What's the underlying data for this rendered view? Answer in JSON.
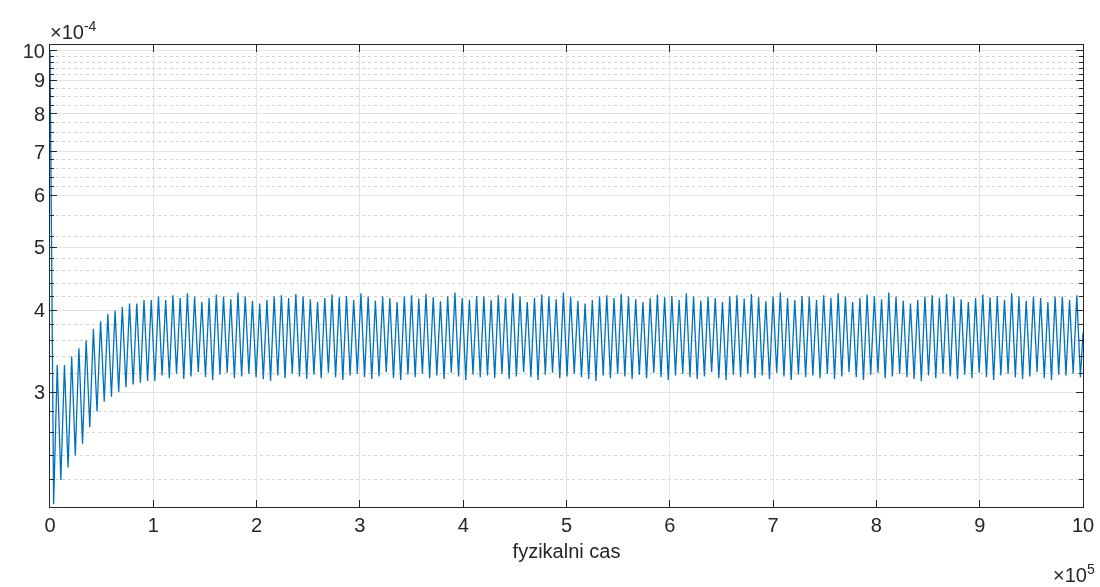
{
  "chart_data": {
    "type": "line",
    "xlabel": "fyzikalni cas",
    "annotations": [
      "×10$^{-4}$",
      "×10$^{5}$"
    ],
    "log": "y",
    "grid": true,
    "marker": "none",
    "line_style": "solid",
    "xlim": [
      0,
      10
    ],
    "ylim": [
      2.0,
      10.2
    ],
    "xticks": [
      0,
      1,
      2,
      3,
      4,
      5,
      6,
      7,
      8,
      9,
      10
    ],
    "yticks": [
      3,
      4,
      5,
      6,
      7,
      8,
      9,
      10,
      {
        "value": 2.2,
        "label": null
      },
      {
        "value": 2.4,
        "label": null
      },
      {
        "value": 2.6,
        "label": null
      },
      {
        "value": 2.8,
        "label": null
      },
      {
        "value": 3.2,
        "label": null
      },
      {
        "value": 3.4,
        "label": null
      },
      {
        "value": 3.6,
        "label": null
      },
      {
        "value": 3.8,
        "label": null
      },
      {
        "value": 4.2,
        "label": null
      },
      {
        "value": 4.4,
        "label": null
      },
      {
        "value": 4.6,
        "label": null
      },
      {
        "value": 4.8,
        "label": null
      },
      {
        "value": 5.2,
        "label": null
      },
      {
        "value": 5.6,
        "label": null
      },
      {
        "value": 6.2,
        "label": null
      },
      {
        "value": 6.4,
        "label": null
      },
      {
        "value": 6.6,
        "label": null
      },
      {
        "value": 6.8,
        "label": null
      },
      {
        "value": 7.25,
        "label": null
      },
      {
        "value": 7.5,
        "label": null
      },
      {
        "value": 7.75,
        "label": null
      },
      {
        "value": 8.25,
        "label": null
      },
      {
        "value": 8.5,
        "label": null
      },
      {
        "value": 8.75,
        "label": null
      },
      {
        "value": 9.2,
        "label": null
      },
      {
        "value": 9.4,
        "label": null
      },
      {
        "value": 9.6,
        "label": null
      },
      {
        "value": 9.8,
        "label": null
      }
    ],
    "x": [
      0,
      0.035,
      0.07,
      0.105,
      0.14,
      0.175,
      0.21,
      0.245,
      0.28,
      0.315,
      0.35,
      0.385,
      0.42,
      0.455,
      0.49,
      0.525,
      0.56,
      0.595,
      0.63,
      0.665,
      0.7,
      0.735,
      0.77,
      0.805,
      0.84,
      0.875,
      0.91,
      0.945,
      0.98,
      1.015,
      1.05,
      1.085,
      1.12,
      1.155,
      1.19,
      1.225,
      1.26,
      1.295,
      1.33,
      1.365,
      1.4,
      1.435,
      1.47,
      1.505,
      1.54,
      1.575,
      1.61,
      1.645,
      1.68,
      1.715,
      1.75,
      1.785,
      1.82,
      1.855,
      1.89,
      1.925,
      1.96,
      1.995,
      2.03,
      2.065,
      2.1,
      2.135,
      2.17,
      2.205,
      2.24,
      2.275,
      2.31,
      2.345,
      2.38,
      2.415,
      2.45,
      2.485,
      2.52,
      2.555,
      2.59,
      2.625,
      2.66,
      2.695,
      2.73,
      2.765,
      2.8,
      2.835,
      2.87,
      2.905,
      2.94,
      2.975,
      3.01,
      3.045,
      3.08,
      3.115,
      3.15,
      3.185,
      3.22,
      3.255,
      3.29,
      3.325,
      3.36,
      3.395,
      3.43,
      3.465,
      3.5,
      3.535,
      3.57,
      3.605,
      3.64,
      3.675,
      3.71,
      3.745,
      3.78,
      3.815,
      3.85,
      3.885,
      3.92,
      3.955,
      3.99,
      4.025,
      4.06,
      4.095,
      4.13,
      4.165,
      4.2,
      4.235,
      4.27,
      4.305,
      4.34,
      4.375,
      4.41,
      4.445,
      4.48,
      4.515,
      4.55,
      4.585,
      4.62,
      4.655,
      4.69,
      4.725,
      4.76,
      4.795,
      4.83,
      4.865,
      4.9,
      4.935,
      4.97,
      5.005,
      5.04,
      5.075,
      5.11,
      5.145,
      5.18,
      5.215,
      5.25,
      5.285,
      5.32,
      5.355,
      5.39,
      5.425,
      5.46,
      5.495,
      5.53,
      5.565,
      5.6,
      5.635,
      5.67,
      5.705,
      5.74,
      5.775,
      5.81,
      5.845,
      5.88,
      5.915,
      5.95,
      5.985,
      6.02,
      6.055,
      6.09,
      6.125,
      6.16,
      6.195,
      6.23,
      6.265,
      6.3,
      6.335,
      6.37,
      6.405,
      6.44,
      6.475,
      6.51,
      6.545,
      6.58,
      6.615,
      6.65,
      6.685,
      6.72,
      6.755,
      6.79,
      6.825,
      6.86,
      6.895,
      6.93,
      6.965,
      7.0,
      7.035,
      7.07,
      7.105,
      7.14,
      7.175,
      7.21,
      7.245,
      7.28,
      7.315,
      7.35,
      7.385,
      7.42,
      7.455,
      7.49,
      7.525,
      7.56,
      7.595,
      7.63,
      7.665,
      7.7,
      7.735,
      7.77,
      7.805,
      7.84,
      7.875,
      7.91,
      7.945,
      7.98,
      8.015,
      8.05,
      8.085,
      8.12,
      8.155,
      8.19,
      8.225,
      8.26,
      8.295,
      8.33,
      8.365,
      8.4,
      8.435,
      8.47,
      8.505,
      8.54,
      8.575,
      8.61,
      8.645,
      8.68,
      8.715,
      8.75,
      8.785,
      8.82,
      8.855,
      8.89,
      8.925,
      8.96,
      8.995,
      9.03,
      9.065,
      9.1,
      9.135,
      9.17,
      9.205,
      9.24,
      9.275,
      9.31,
      9.345,
      9.38,
      9.415,
      9.45,
      9.485,
      9.52,
      9.555,
      9.59,
      9.625,
      9.66,
      9.695,
      9.73,
      9.765,
      9.8,
      9.835,
      9.87,
      9.905,
      9.94,
      9.975,
      10
    ],
    "series": [
      {
        "color": "#0072bd",
        "values": [
          10.0,
          2.02,
          3.3,
          2.2,
          3.3,
          2.3,
          3.4,
          2.4,
          3.5,
          2.5,
          3.6,
          2.65,
          3.75,
          2.8,
          3.85,
          2.9,
          3.95,
          2.95,
          4.0,
          3.0,
          4.05,
          3.05,
          4.1,
          3.08,
          4.1,
          3.1,
          4.15,
          3.12,
          4.15,
          3.12,
          4.2,
          3.18,
          4.15,
          3.15,
          4.22,
          3.2,
          4.18,
          3.14,
          4.25,
          3.17,
          4.2,
          3.22,
          4.12,
          3.16,
          4.18,
          3.13,
          4.23,
          3.19,
          4.2,
          3.21,
          4.16,
          3.15,
          4.26,
          3.17,
          4.2,
          3.2,
          4.14,
          3.16,
          4.1,
          3.14,
          4.15,
          3.12,
          4.2,
          3.18,
          4.22,
          3.15,
          4.18,
          3.2,
          4.24,
          3.17,
          4.2,
          3.14,
          4.16,
          3.19,
          4.12,
          3.15,
          4.18,
          3.21,
          4.23,
          3.16,
          4.19,
          3.13,
          4.21,
          3.18,
          4.15,
          3.2,
          4.25,
          3.16,
          4.2,
          3.14,
          4.14,
          3.17,
          4.2,
          3.22,
          4.18,
          3.15,
          4.12,
          3.13,
          4.2,
          3.19,
          4.22,
          3.16,
          4.17,
          3.2,
          4.24,
          3.15,
          4.19,
          3.18,
          4.13,
          3.14,
          4.2,
          3.21,
          4.26,
          3.17,
          4.18,
          3.13,
          4.15,
          3.19,
          4.21,
          3.16,
          4.2,
          3.18,
          4.15,
          3.15,
          4.22,
          3.2,
          4.18,
          3.14,
          4.25,
          3.17,
          4.2,
          3.22,
          4.12,
          3.16,
          4.18,
          3.13,
          4.23,
          3.19,
          4.2,
          3.21,
          4.16,
          3.15,
          4.26,
          3.17,
          4.2,
          3.2,
          4.14,
          3.16,
          4.1,
          3.14,
          4.15,
          3.12,
          4.2,
          3.18,
          4.22,
          3.15,
          4.18,
          3.2,
          4.24,
          3.17,
          4.2,
          3.14,
          4.16,
          3.19,
          4.12,
          3.15,
          4.18,
          3.21,
          4.23,
          3.16,
          4.19,
          3.13,
          4.21,
          3.18,
          4.15,
          3.2,
          4.25,
          3.16,
          4.2,
          3.14,
          4.14,
          3.17,
          4.2,
          3.22,
          4.18,
          3.15,
          4.12,
          3.13,
          4.2,
          3.19,
          4.22,
          3.16,
          4.17,
          3.2,
          4.24,
          3.15,
          4.19,
          3.18,
          4.13,
          3.14,
          4.2,
          3.21,
          4.26,
          3.17,
          4.18,
          3.13,
          4.15,
          3.19,
          4.21,
          3.16,
          4.2,
          3.18,
          4.15,
          3.15,
          4.22,
          3.2,
          4.18,
          3.14,
          4.25,
          3.17,
          4.2,
          3.22,
          4.12,
          3.16,
          4.18,
          3.13,
          4.23,
          3.19,
          4.2,
          3.21,
          4.16,
          3.15,
          4.26,
          3.17,
          4.2,
          3.2,
          4.14,
          3.16,
          4.1,
          3.14,
          4.15,
          3.12,
          4.2,
          3.18,
          4.22,
          3.15,
          4.18,
          3.2,
          4.24,
          3.17,
          4.2,
          3.14,
          4.16,
          3.19,
          4.12,
          3.15,
          4.18,
          3.21,
          4.23,
          3.16,
          4.19,
          3.13,
          4.21,
          3.18,
          4.15,
          3.2,
          4.25,
          3.16,
          4.2,
          3.14,
          4.14,
          3.17,
          4.2,
          3.22,
          4.18,
          3.15,
          4.12,
          3.13,
          4.2,
          3.19,
          4.2,
          3.18,
          4.15,
          3.2,
          4.22,
          3.16,
          3.7
        ]
      }
    ]
  }
}
